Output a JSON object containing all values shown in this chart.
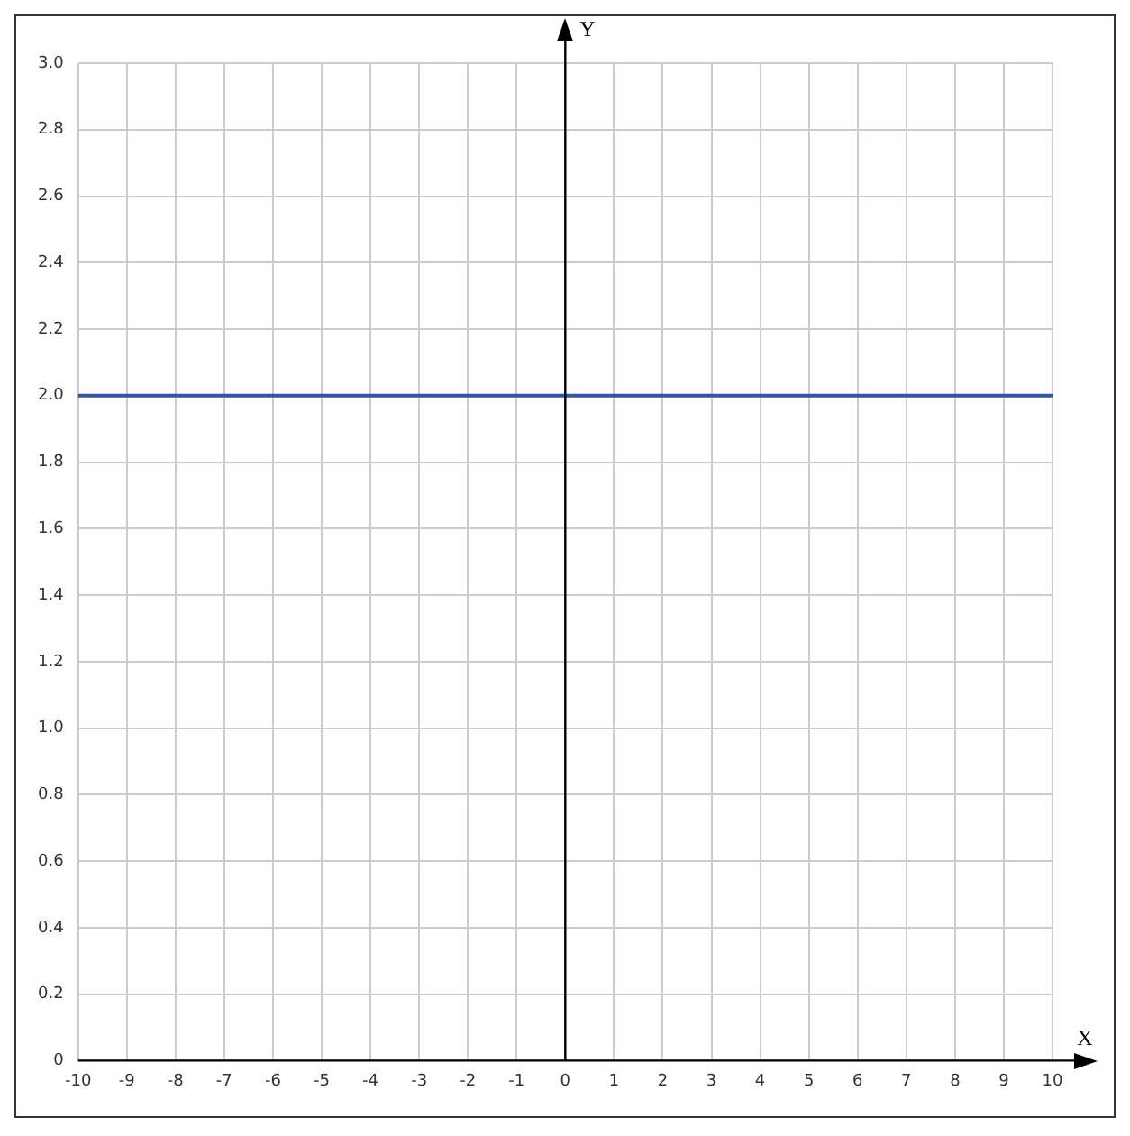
{
  "chart_data": {
    "type": "line",
    "xlabel": "X",
    "ylabel": "Y",
    "x": [
      -10,
      10
    ],
    "series": [
      {
        "color": "#3653a3",
        "values": [
          2,
          2
        ]
      }
    ],
    "xlim": [
      -10,
      10
    ],
    "xticks": [
      -10,
      -9,
      -8,
      -7,
      -6,
      -5,
      -4,
      -3,
      -2,
      -1,
      0,
      1,
      2,
      3,
      4,
      5,
      6,
      7,
      8,
      9,
      10
    ],
    "ylim": [
      0,
      3
    ],
    "yticks": [
      0,
      {
        "value": 0.2,
        "label": "0.2"
      },
      {
        "value": 0.4,
        "label": "0.4"
      },
      {
        "value": 0.6,
        "label": "0.6"
      },
      {
        "value": 0.8,
        "label": "0.8"
      },
      {
        "value": 1,
        "label": "1.0"
      },
      {
        "value": 1.2,
        "label": "1.2"
      },
      {
        "value": 1.4,
        "label": "1.4"
      },
      {
        "value": 1.6,
        "label": "1.6"
      },
      {
        "value": 1.8,
        "label": "1.8"
      },
      {
        "value": 2,
        "label": "2.0"
      },
      {
        "value": 2.2,
        "label": "2.2"
      },
      {
        "value": 2.4,
        "label": "2.4"
      },
      {
        "value": 2.6,
        "label": "2.6"
      },
      {
        "value": 2.8,
        "label": "2.8"
      },
      {
        "value": 3,
        "label": "3.0"
      }
    ],
    "grid": true,
    "marker": "none",
    "line_style": "solid",
    "legend": false
  }
}
